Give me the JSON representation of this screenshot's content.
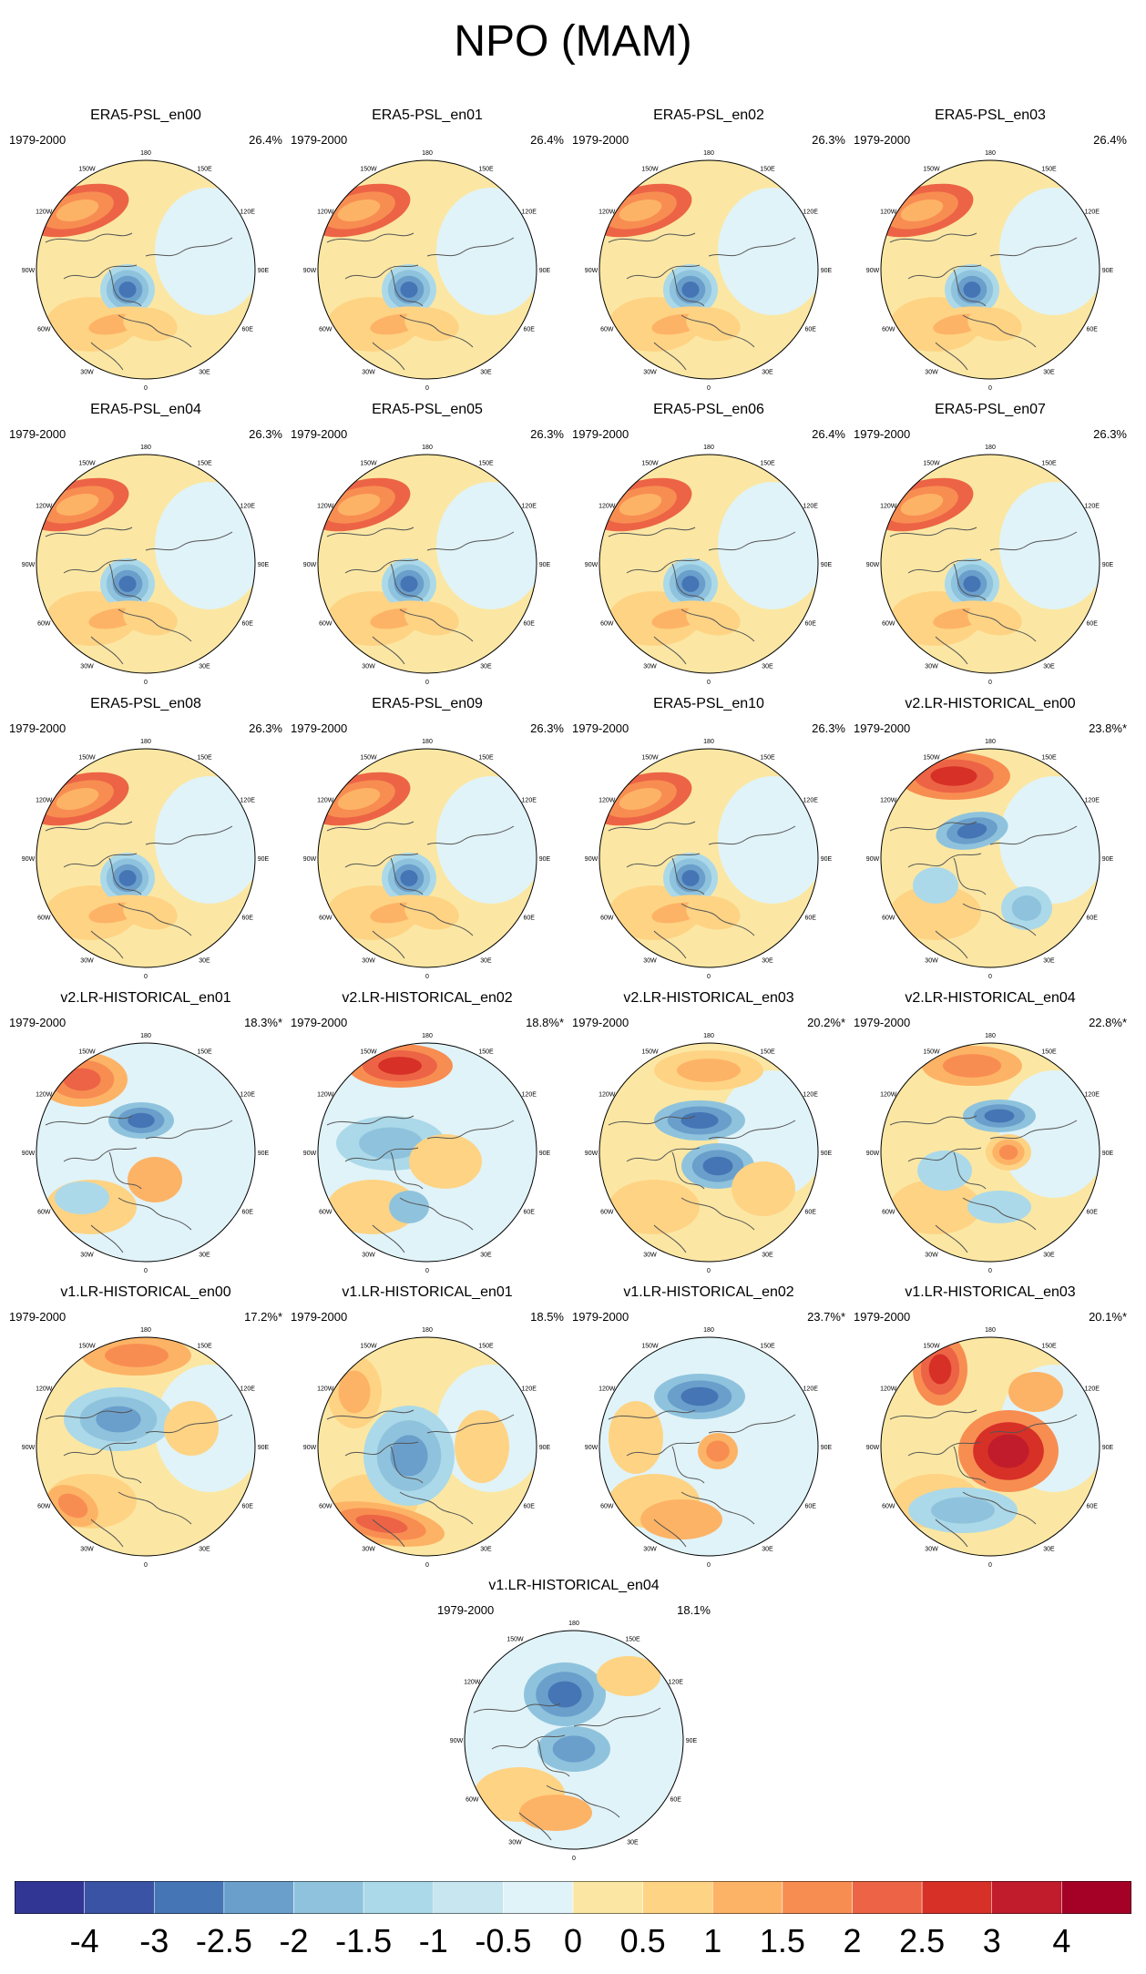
{
  "title": "NPO (MAM)",
  "period": "1979-2000",
  "grid_labels": [
    "180",
    "150E",
    "120E",
    "90E",
    "60E",
    "30E",
    "0",
    "30W",
    "60W",
    "90W",
    "120W",
    "150W"
  ],
  "panels": [
    {
      "name": "ERA5-PSL_en00",
      "pct": "26.4%",
      "style": "era5"
    },
    {
      "name": "ERA5-PSL_en01",
      "pct": "26.4%",
      "style": "era5"
    },
    {
      "name": "ERA5-PSL_en02",
      "pct": "26.3%",
      "style": "era5"
    },
    {
      "name": "ERA5-PSL_en03",
      "pct": "26.4%",
      "style": "era5"
    },
    {
      "name": "ERA5-PSL_en04",
      "pct": "26.3%",
      "style": "era5"
    },
    {
      "name": "ERA5-PSL_en05",
      "pct": "26.3%",
      "style": "era5"
    },
    {
      "name": "ERA5-PSL_en06",
      "pct": "26.4%",
      "style": "era5"
    },
    {
      "name": "ERA5-PSL_en07",
      "pct": "26.3%",
      "style": "era5"
    },
    {
      "name": "ERA5-PSL_en08",
      "pct": "26.3%",
      "style": "era5"
    },
    {
      "name": "ERA5-PSL_en09",
      "pct": "26.3%",
      "style": "era5"
    },
    {
      "name": "ERA5-PSL_en10",
      "pct": "26.3%",
      "style": "era5"
    },
    {
      "name": "v2.LR-HISTORICAL_en00",
      "pct": "23.8%*",
      "style": "v2a"
    },
    {
      "name": "v2.LR-HISTORICAL_en01",
      "pct": "18.3%*",
      "style": "v2b"
    },
    {
      "name": "v2.LR-HISTORICAL_en02",
      "pct": "18.8%*",
      "style": "v2c"
    },
    {
      "name": "v2.LR-HISTORICAL_en03",
      "pct": "20.2%*",
      "style": "v2d"
    },
    {
      "name": "v2.LR-HISTORICAL_en04",
      "pct": "22.8%*",
      "style": "v2e"
    },
    {
      "name": "v1.LR-HISTORICAL_en00",
      "pct": "17.2%*",
      "style": "v1a"
    },
    {
      "name": "v1.LR-HISTORICAL_en01",
      "pct": "18.5%",
      "style": "v1b"
    },
    {
      "name": "v1.LR-HISTORICAL_en02",
      "pct": "23.7%*",
      "style": "v1c"
    },
    {
      "name": "v1.LR-HISTORICAL_en03",
      "pct": "20.1%*",
      "style": "v1d"
    },
    {
      "name": "v1.LR-HISTORICAL_en04",
      "pct": "18.1%",
      "style": "v1e"
    }
  ],
  "colorbar": {
    "colors": [
      "#313695",
      "#3a53a4",
      "#4575b4",
      "#6a9fcc",
      "#8fc3dd",
      "#abd9e9",
      "#c7e6ef",
      "#e0f3f8",
      "#fbe7a3",
      "#fed384",
      "#fdb366",
      "#f88d52",
      "#ec6445",
      "#d73027",
      "#c11c2b",
      "#a50026"
    ],
    "labels": [
      "-4",
      "-3",
      "-2.5",
      "-2",
      "-1.5",
      "-1",
      "-0.5",
      "0",
      "0.5",
      "1",
      "1.5",
      "2",
      "2.5",
      "3",
      "4"
    ]
  }
}
